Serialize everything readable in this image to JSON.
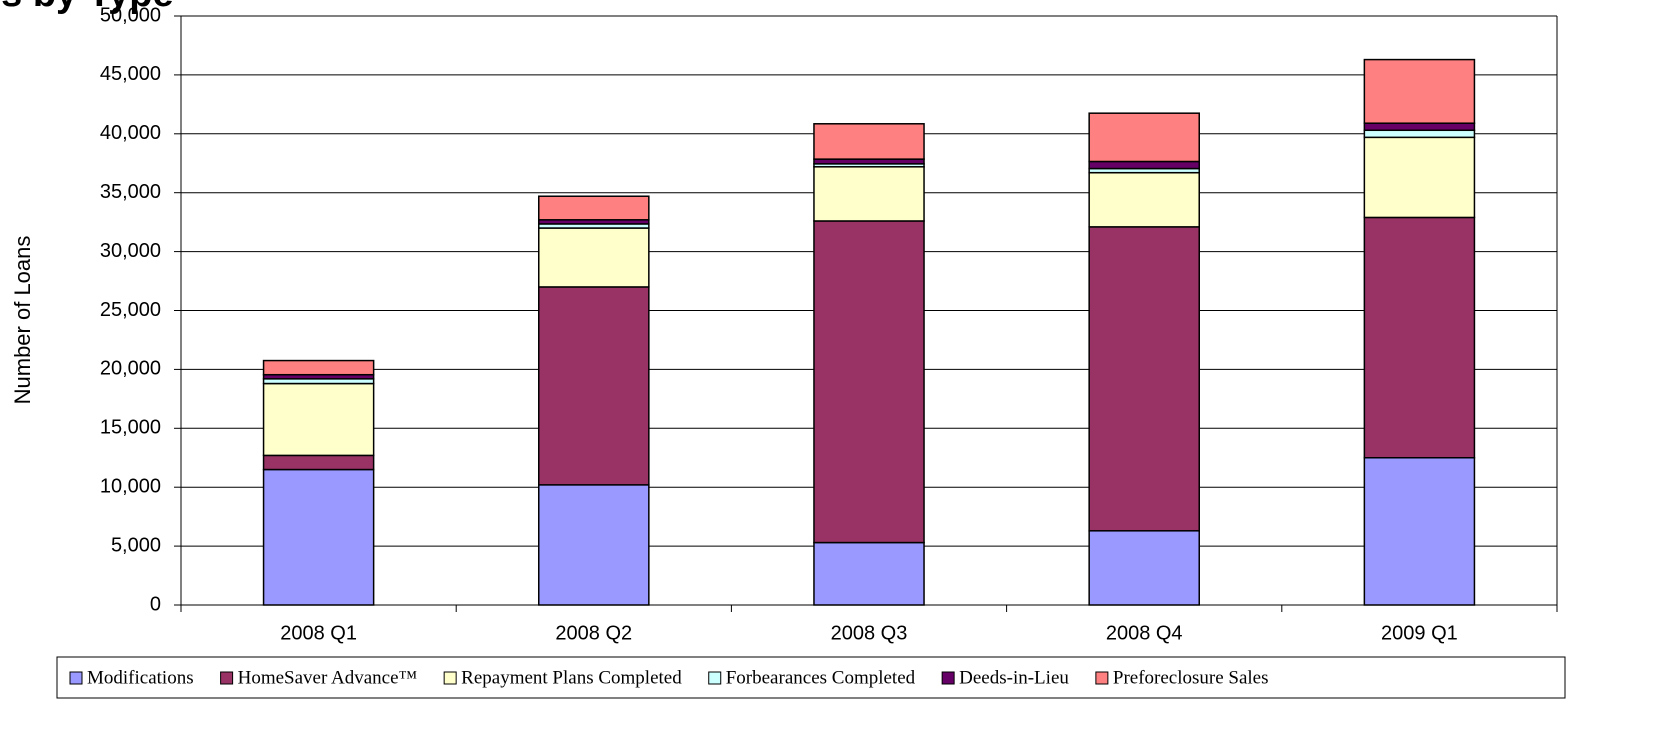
{
  "chart_data": {
    "type": "stacked-bar",
    "title": "es by Type",
    "y_label": "Number of Loans",
    "categories": [
      "2008 Q1",
      "2008 Q2",
      "2008 Q3",
      "2008 Q4",
      "2009 Q1"
    ],
    "series": [
      {
        "name": "Modifications",
        "color": "#9999ff",
        "values": [
          11500,
          10200,
          5300,
          6300,
          12500
        ]
      },
      {
        "name": "HomeSaver Advance™",
        "color": "#993366",
        "values": [
          1200,
          16800,
          27300,
          25800,
          20400
        ]
      },
      {
        "name": "Repayment Plans Completed",
        "color": "#ffffcc",
        "values": [
          6100,
          5000,
          4600,
          4600,
          6800
        ]
      },
      {
        "name": "Forbearances Completed",
        "color": "#ccffff",
        "values": [
          400,
          350,
          250,
          350,
          600
        ]
      },
      {
        "name": "Deeds-in-Lieu",
        "color": "#660066",
        "values": [
          350,
          350,
          400,
          600,
          600
        ]
      },
      {
        "name": "Preforeclosure Sales",
        "color": "#ff8080",
        "values": [
          1200,
          2000,
          3000,
          4100,
          5400
        ]
      }
    ],
    "ylim": [
      0,
      50000
    ],
    "yticks": [
      {
        "value": 0,
        "label": "0"
      },
      {
        "value": 5000,
        "label": "5,000"
      },
      {
        "value": 10000,
        "label": "10,000"
      },
      {
        "value": 15000,
        "label": "15,000"
      },
      {
        "value": 20000,
        "label": "20,000"
      },
      {
        "value": 25000,
        "label": "25,000"
      },
      {
        "value": 30000,
        "label": "30,000"
      },
      {
        "value": 35000,
        "label": "35,000"
      },
      {
        "value": 40000,
        "label": "40,000"
      },
      {
        "value": 45000,
        "label": "45,000"
      },
      {
        "value": 50000,
        "label": "50,000"
      }
    ],
    "grid": true,
    "legend": "bottom"
  }
}
